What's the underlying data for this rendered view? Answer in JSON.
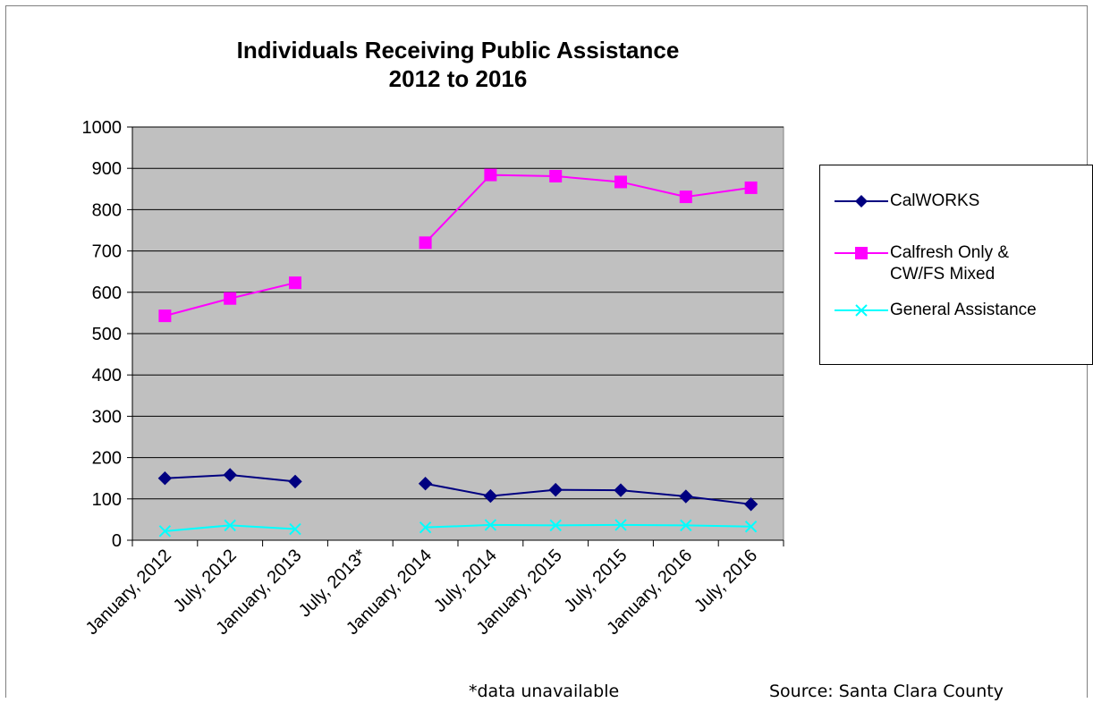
{
  "chart_data": {
    "type": "line",
    "title_lines": [
      "Individuals Receiving Public Assistance",
      "2012 to 2016"
    ],
    "categories": [
      "January, 2012",
      "July, 2012",
      "January, 2013",
      "July, 2013*",
      "January, 2014",
      "July, 2014",
      "January, 2015",
      "July, 2015",
      "January, 2016",
      "July, 2016"
    ],
    "series": [
      {
        "name": "CalWORKS",
        "color": "#000080",
        "marker": "diamond",
        "values": [
          150,
          158,
          142,
          null,
          137,
          107,
          122,
          121,
          106,
          87
        ]
      },
      {
        "name": "Calfresh  Only & CW/FS Mixed",
        "color": "#ff00ff",
        "marker": "square",
        "values": [
          543,
          585,
          623,
          null,
          720,
          884,
          881,
          867,
          831,
          853
        ]
      },
      {
        "name": "General Assistance",
        "color": "#00ffff",
        "marker": "x",
        "values": [
          22,
          36,
          27,
          null,
          31,
          37,
          36,
          37,
          36,
          33
        ]
      }
    ],
    "ylim": [
      0,
      1000
    ],
    "yticks": [
      0,
      100,
      200,
      300,
      400,
      500,
      600,
      700,
      800,
      900,
      1000
    ],
    "grid": true,
    "plot_background": "#c0c0c0",
    "legend_position": "right",
    "legend_labels": [
      [
        "CalWORKS"
      ],
      [
        "Calfresh  Only &",
        "CW/FS Mixed"
      ],
      [
        "General Assistance"
      ]
    ]
  },
  "footnote": "*data unavailable",
  "source": "Source: Santa Clara County"
}
